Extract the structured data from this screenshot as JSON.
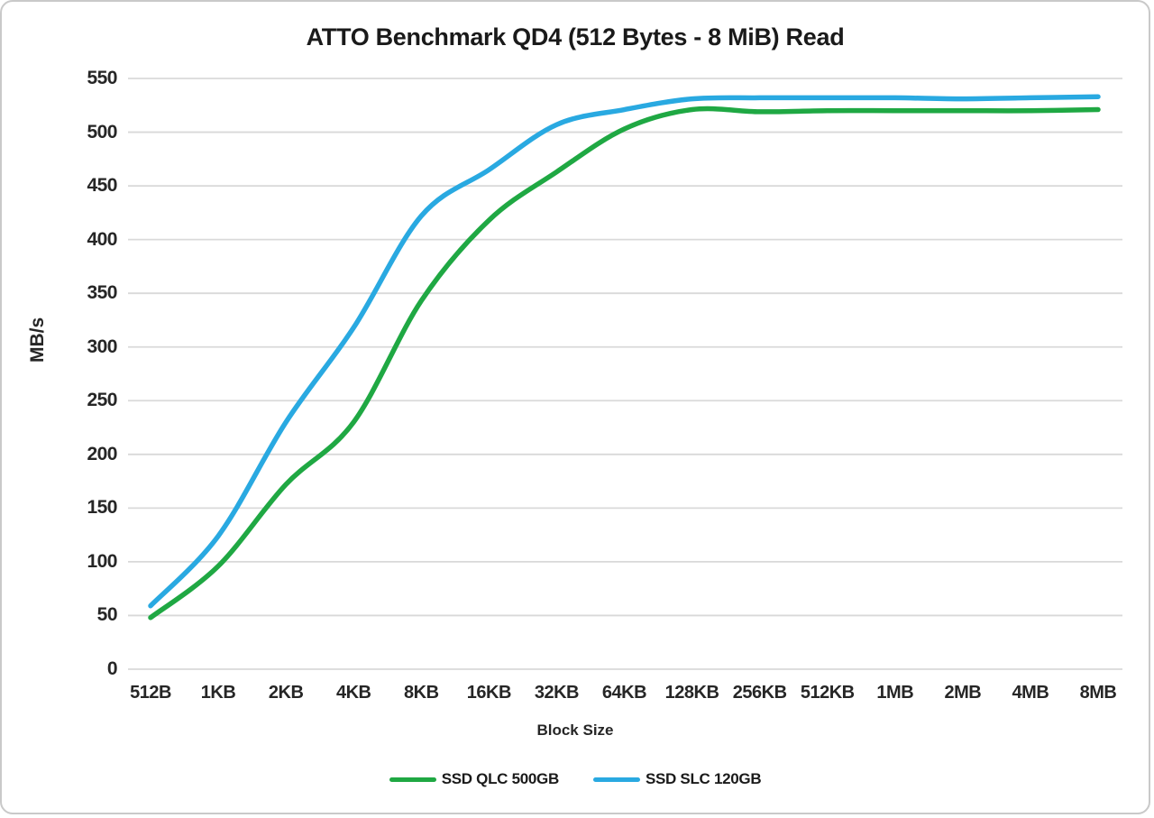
{
  "page": {
    "background": "#ffffff",
    "frame_border_color": "#c9c9c9"
  },
  "chart_data": {
    "type": "line",
    "title": "ATTO Benchmark QD4 (512 Bytes - 8 MiB) Read",
    "xlabel": "Block Size",
    "ylabel": "MB/s",
    "ylim": [
      0,
      550
    ],
    "yticks": [
      0,
      50,
      100,
      150,
      200,
      250,
      300,
      350,
      400,
      450,
      500,
      550
    ],
    "grid": true,
    "grid_color": "#d9d9d9",
    "legend_position": "bottom",
    "categories": [
      "512B",
      "1KB",
      "2KB",
      "4KB",
      "8KB",
      "16KB",
      "32KB",
      "64KB",
      "128KB",
      "256KB",
      "512KB",
      "1MB",
      "2MB",
      "4MB",
      "8MB"
    ],
    "series": [
      {
        "name": "SSD QLC 500GB",
        "color": "#1fa843",
        "values": [
          48,
          96,
          172,
          230,
          343,
          418,
          463,
          503,
          521,
          519,
          520,
          520,
          520,
          520,
          521
        ]
      },
      {
        "name": "SSD SLC 120GB",
        "color": "#29a9e1",
        "values": [
          59,
          124,
          230,
          318,
          422,
          465,
          507,
          521,
          531,
          532,
          532,
          532,
          531,
          532,
          533
        ]
      }
    ]
  }
}
